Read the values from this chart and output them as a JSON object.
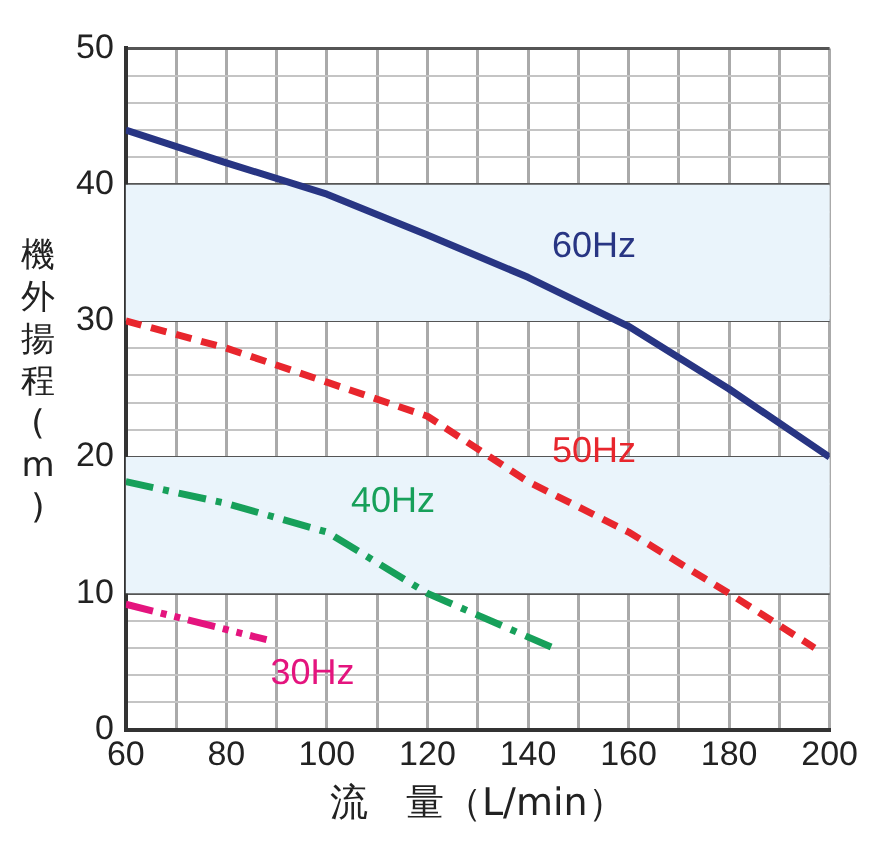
{
  "chart_data": {
    "type": "line",
    "xlabel": "流　量（L/min）",
    "ylabel": "機外揚程(m)",
    "xlim": [
      60,
      200
    ],
    "xticks": [
      60,
      {
        "value": 70,
        "label": null
      },
      80,
      {
        "value": 90,
        "label": null
      },
      100,
      {
        "value": 110,
        "label": null
      },
      120,
      {
        "value": 130,
        "label": null
      },
      140,
      {
        "value": 150,
        "label": null
      },
      160,
      {
        "value": 170,
        "label": null
      },
      180,
      {
        "value": 190,
        "label": null
      },
      200
    ],
    "ylim": [
      0,
      50
    ],
    "yticks": [
      0,
      {
        "value": 2,
        "label": null
      },
      {
        "value": 4,
        "label": null
      },
      {
        "value": 6,
        "label": null
      },
      {
        "value": 8,
        "label": null
      },
      10,
      {
        "value": 12,
        "label": null
      },
      {
        "value": 14,
        "label": null
      },
      {
        "value": 16,
        "label": null
      },
      {
        "value": 18,
        "label": null
      },
      20,
      {
        "value": 22,
        "label": null
      },
      {
        "value": 24,
        "label": null
      },
      {
        "value": 26,
        "label": null
      },
      {
        "value": 28,
        "label": null
      },
      30,
      {
        "value": 32,
        "label": null
      },
      {
        "value": 34,
        "label": null
      },
      {
        "value": 36,
        "label": null
      },
      {
        "value": 38,
        "label": null
      },
      40,
      {
        "value": 42,
        "label": null
      },
      {
        "value": 44,
        "label": null
      },
      {
        "value": 46,
        "label": null
      },
      {
        "value": 48,
        "label": null
      },
      50
    ],
    "grid": true,
    "legend": false,
    "marker": "none",
    "bands": [
      {
        "axis": "y",
        "from": 10,
        "to": 20,
        "color": "#eaf4fb"
      },
      {
        "axis": "y",
        "from": 30,
        "to": 40,
        "color": "#eaf4fb"
      }
    ],
    "series": [
      {
        "name": "60Hz",
        "color": "#283583",
        "line_style": "solid",
        "x": [
          60,
          80,
          100,
          120,
          140,
          160,
          180,
          200
        ],
        "values": [
          44,
          41.6,
          39.3,
          36.3,
          33.2,
          29.6,
          25,
          20
        ]
      },
      {
        "name": "50Hz",
        "color": "#e8262d",
        "line_style": "dashed",
        "x": [
          60,
          80,
          100,
          120,
          140,
          160,
          180,
          197
        ],
        "values": [
          30,
          28,
          25.5,
          23,
          18.2,
          14.5,
          10,
          6
        ]
      },
      {
        "name": "40Hz",
        "color": "#17a05a",
        "line_style": "dashdot",
        "x": [
          60,
          80,
          100,
          120,
          145
        ],
        "values": [
          18.2,
          16.6,
          14.5,
          10,
          6
        ]
      },
      {
        "name": "30Hz",
        "color": "#e4147e",
        "line_style": "dashdotdot",
        "x": [
          60,
          88
        ],
        "values": [
          9.2,
          6.6
        ]
      }
    ]
  }
}
